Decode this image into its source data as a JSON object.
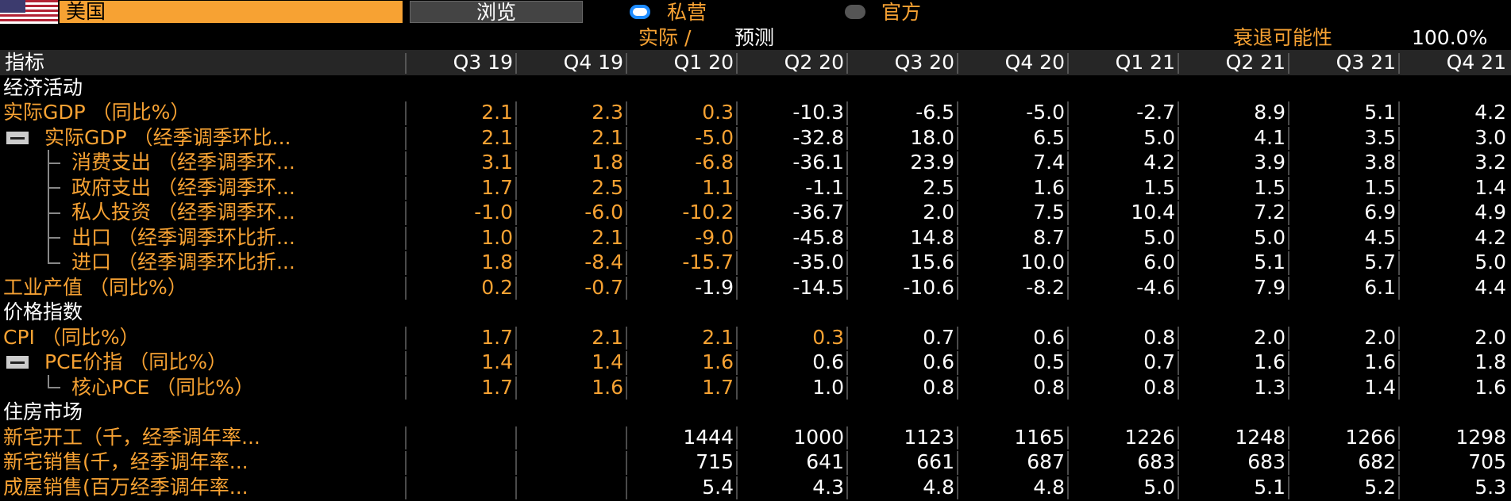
{
  "header": {
    "country": "美国",
    "browse_button": "浏览",
    "sources": [
      {
        "label": "私营",
        "selected": true
      },
      {
        "label": "官方",
        "selected": false
      }
    ],
    "actual_label": "实际 /",
    "forecast_label": "预测",
    "recession_label": "衰退可能性",
    "recession_value": "100.0%"
  },
  "table": {
    "columns": [
      "指标",
      "Q3 19",
      "Q4 19",
      "Q1 20",
      "Q2 20",
      "Q3 20",
      "Q4 20",
      "Q1 21",
      "Q2 21",
      "Q3 21",
      "Q4 21"
    ],
    "rows": [
      {
        "label": "经济活动",
        "section": true
      },
      {
        "label": "实际GDP （同比%）",
        "level": 0,
        "orange_cells": 3,
        "values": [
          "2.1",
          "2.3",
          "0.3",
          "-10.3",
          "-6.5",
          "-5.0",
          "-2.7",
          "8.9",
          "5.1",
          "4.2"
        ]
      },
      {
        "label": "实际GDP （经季调季环比...",
        "level": 0,
        "collapsible": true,
        "orange_cells": 3,
        "values": [
          "2.1",
          "2.1",
          "-5.0",
          "-32.8",
          "18.0",
          "6.5",
          "5.0",
          "4.1",
          "3.5",
          "3.0"
        ]
      },
      {
        "label": "消费支出 （经季调季环...",
        "level": 1,
        "orange_cells": 3,
        "values": [
          "3.1",
          "1.8",
          "-6.8",
          "-36.1",
          "23.9",
          "7.4",
          "4.2",
          "3.9",
          "3.8",
          "3.2"
        ]
      },
      {
        "label": "政府支出 （经季调季环...",
        "level": 1,
        "orange_cells": 3,
        "values": [
          "1.7",
          "2.5",
          "1.1",
          "-1.1",
          "2.5",
          "1.6",
          "1.5",
          "1.5",
          "1.5",
          "1.4"
        ]
      },
      {
        "label": "私人投资 （经季调季环...",
        "level": 1,
        "orange_cells": 3,
        "values": [
          "-1.0",
          "-6.0",
          "-10.2",
          "-36.7",
          "2.0",
          "7.5",
          "10.4",
          "7.2",
          "6.9",
          "4.9"
        ]
      },
      {
        "label": "出口 （经季调季环比折...",
        "level": 1,
        "orange_cells": 3,
        "values": [
          "1.0",
          "2.1",
          "-9.0",
          "-45.8",
          "14.8",
          "8.7",
          "5.0",
          "5.0",
          "4.5",
          "4.2"
        ]
      },
      {
        "label": "进口 （经季调季环比折...",
        "level": 1,
        "last_child": true,
        "orange_cells": 3,
        "values": [
          "1.8",
          "-8.4",
          "-15.7",
          "-35.0",
          "15.6",
          "10.0",
          "6.0",
          "5.1",
          "5.7",
          "5.0"
        ]
      },
      {
        "label": "工业产值 （同比%）",
        "level": 0,
        "orange_cells": 2,
        "values": [
          "0.2",
          "-0.7",
          "-1.9",
          "-14.5",
          "-10.6",
          "-8.2",
          "-4.6",
          "7.9",
          "6.1",
          "4.4"
        ]
      },
      {
        "label": "价格指数",
        "section": true
      },
      {
        "label": "CPI （同比%）",
        "level": 0,
        "orange_cells": 4,
        "values": [
          "1.7",
          "2.1",
          "2.1",
          "0.3",
          "0.7",
          "0.6",
          "0.8",
          "2.0",
          "2.0",
          "2.0"
        ]
      },
      {
        "label": "PCE价指 （同比%）",
        "level": 0,
        "collapsible": true,
        "orange_cells": 3,
        "values": [
          "1.4",
          "1.4",
          "1.6",
          "0.6",
          "0.6",
          "0.5",
          "0.7",
          "1.6",
          "1.6",
          "1.8"
        ]
      },
      {
        "label": "核心PCE （同比%）",
        "level": 1,
        "last_child": true,
        "orange_cells": 3,
        "values": [
          "1.7",
          "1.6",
          "1.7",
          "1.0",
          "0.8",
          "0.8",
          "0.8",
          "1.3",
          "1.4",
          "1.6"
        ]
      },
      {
        "label": "住房市场",
        "section": true
      },
      {
        "label": "新宅开工（千，经季调年率...",
        "level": 0,
        "orange_cells": 0,
        "values": [
          null,
          null,
          "1444",
          "1000",
          "1123",
          "1165",
          "1226",
          "1248",
          "1266",
          "1298"
        ]
      },
      {
        "label": "新宅销售(千，经季调年率...",
        "level": 0,
        "orange_cells": 0,
        "values": [
          null,
          null,
          "715",
          "641",
          "661",
          "687",
          "683",
          "683",
          "682",
          "705"
        ]
      },
      {
        "label": "成屋销售(百万经季调年率...",
        "level": 0,
        "orange_cells": 0,
        "values": [
          null,
          null,
          "5.4",
          "4.3",
          "4.8",
          "4.8",
          "5.0",
          "5.1",
          "5.2",
          "5.3"
        ]
      }
    ]
  }
}
